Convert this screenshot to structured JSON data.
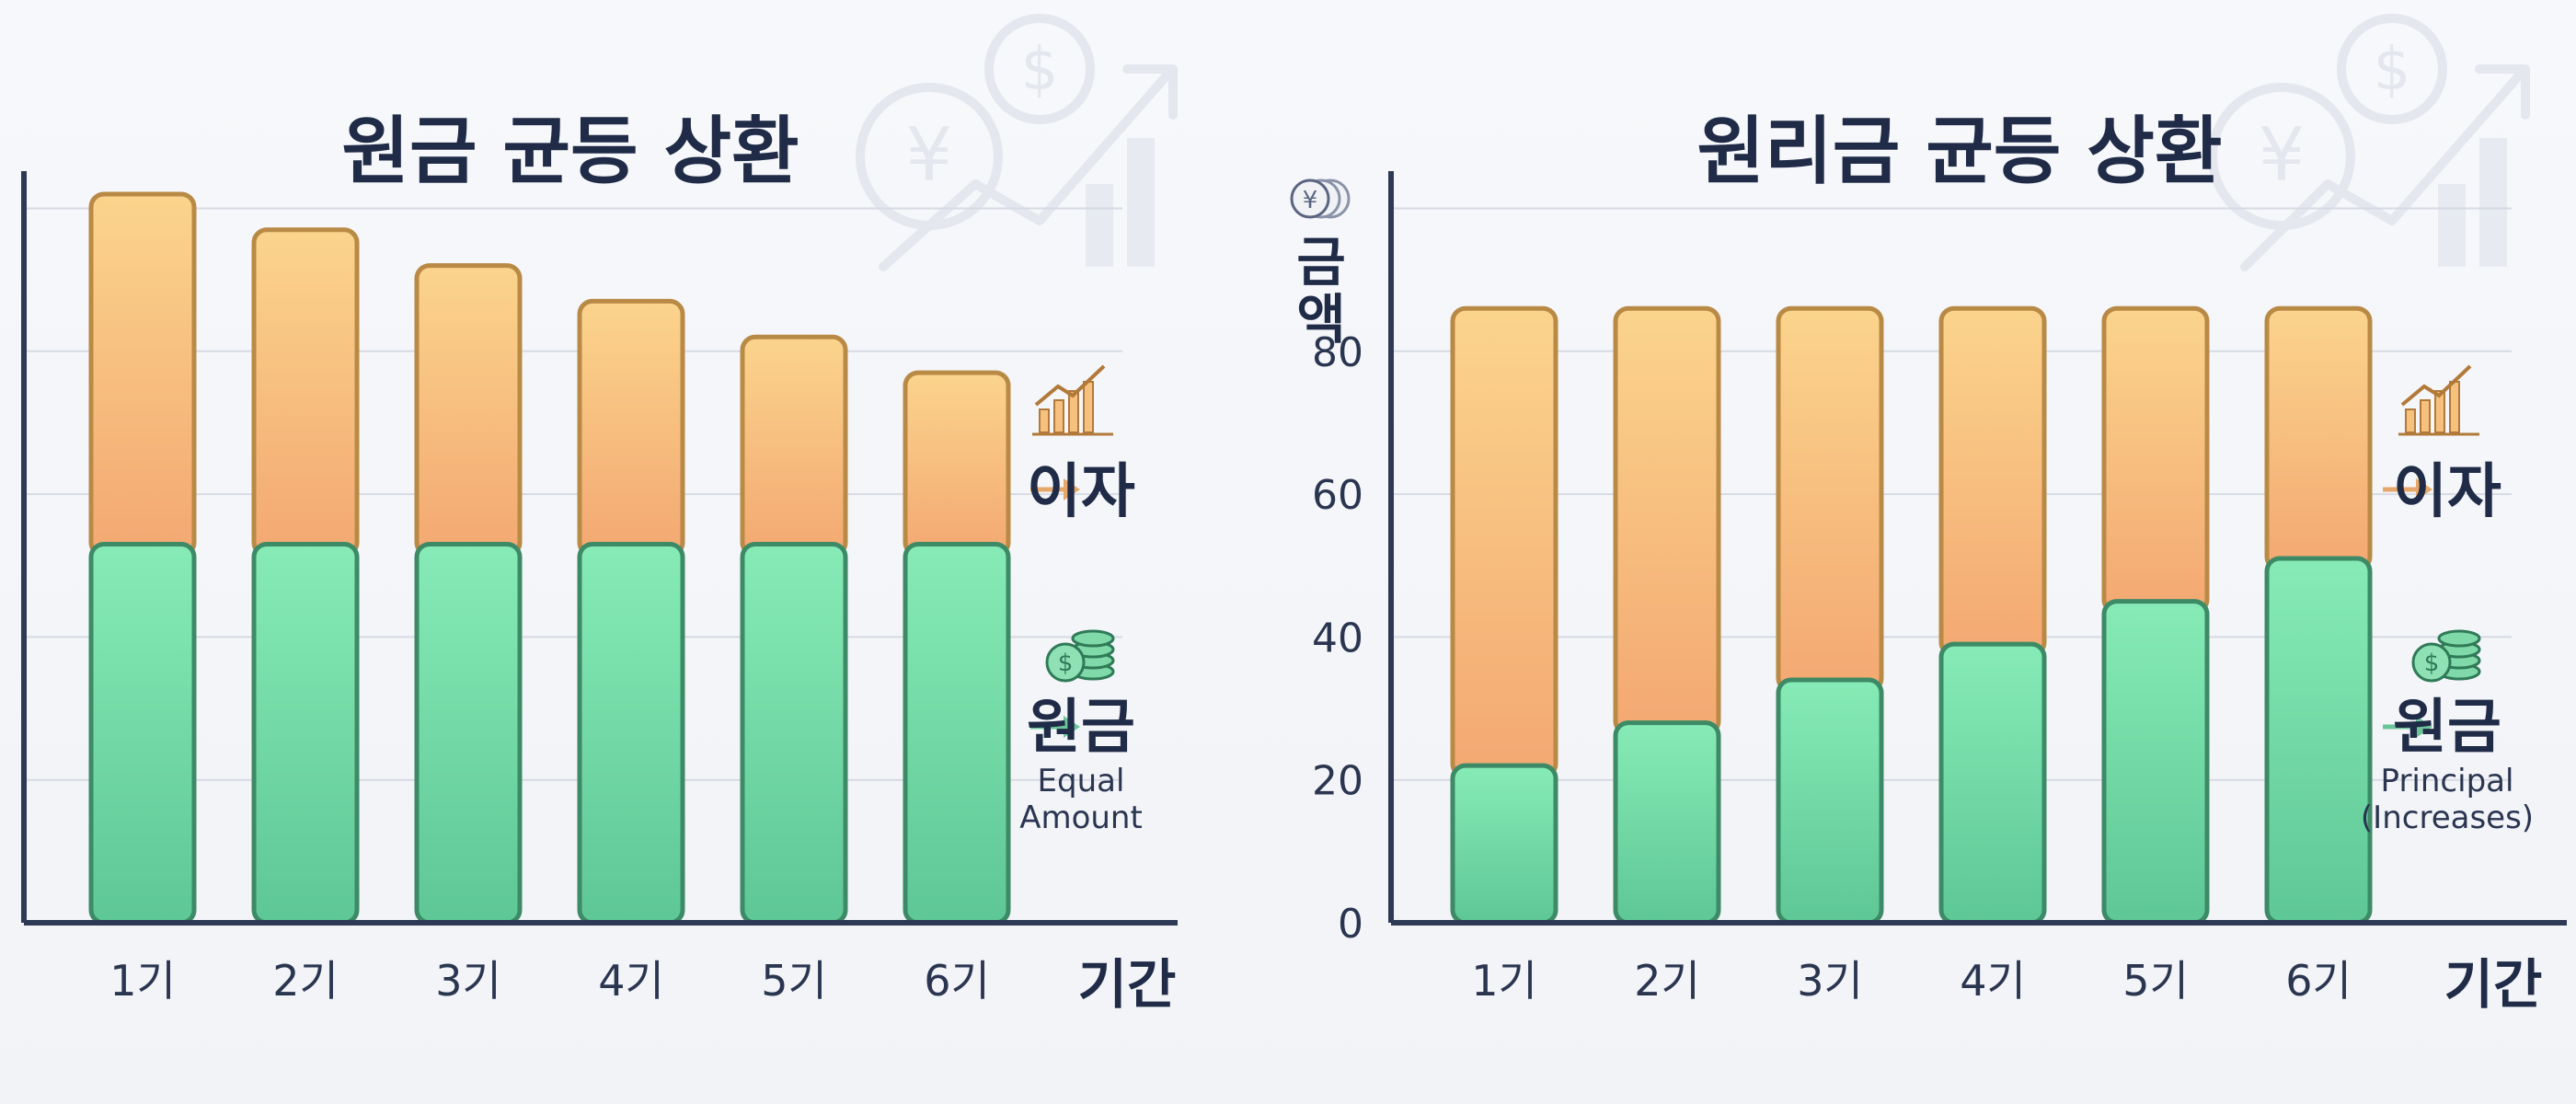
{
  "chart_data": [
    {
      "type": "bar",
      "title": "원금 균등 상환",
      "categories": [
        "1기",
        "2기",
        "3기",
        "4기",
        "5기",
        "6기"
      ],
      "series": [
        {
          "name": "원금",
          "values": [
            53,
            53,
            53,
            53,
            53,
            53
          ]
        },
        {
          "name": "이자",
          "values": [
            49,
            44,
            39,
            34,
            29,
            24
          ]
        }
      ],
      "stacked": true,
      "xlabel": "기간",
      "ylabel": "",
      "ylim": [
        0,
        115
      ],
      "gridlines": [
        20,
        40,
        60,
        80,
        100
      ],
      "show_y_ticks": false,
      "legend": [
        {
          "label": "이자",
          "icon": "trend-chart-icon"
        },
        {
          "label": "원금",
          "icon": "coin-stack-icon",
          "caption": [
            "Equal",
            "Amount"
          ]
        }
      ],
      "legend_position": "right",
      "colors": {
        "principal": "#6fd6a2",
        "interest": "#f6b97a"
      }
    },
    {
      "type": "bar",
      "title": "원리금 균등 상환",
      "categories": [
        "1기",
        "2기",
        "3기",
        "4기",
        "5기",
        "6기"
      ],
      "series": [
        {
          "name": "원금",
          "values": [
            22,
            28,
            34,
            39,
            45,
            51
          ]
        },
        {
          "name": "이자",
          "values": [
            64,
            58,
            52,
            47,
            41,
            35
          ]
        }
      ],
      "stacked": true,
      "xlabel": "기간",
      "ylabel": "금액",
      "ylim": [
        0,
        115
      ],
      "y_ticks": [
        0,
        20,
        40,
        60,
        80
      ],
      "gridlines": [
        20,
        40,
        60,
        80,
        100
      ],
      "show_y_ticks": true,
      "legend": [
        {
          "label": "이자",
          "icon": "trend-chart-icon"
        },
        {
          "label": "원금",
          "icon": "coin-stack-icon",
          "caption": [
            "Principal",
            "(Increases)"
          ]
        }
      ],
      "legend_position": "right",
      "colors": {
        "principal": "#6fd6a2",
        "interest": "#f6b97a"
      }
    }
  ]
}
